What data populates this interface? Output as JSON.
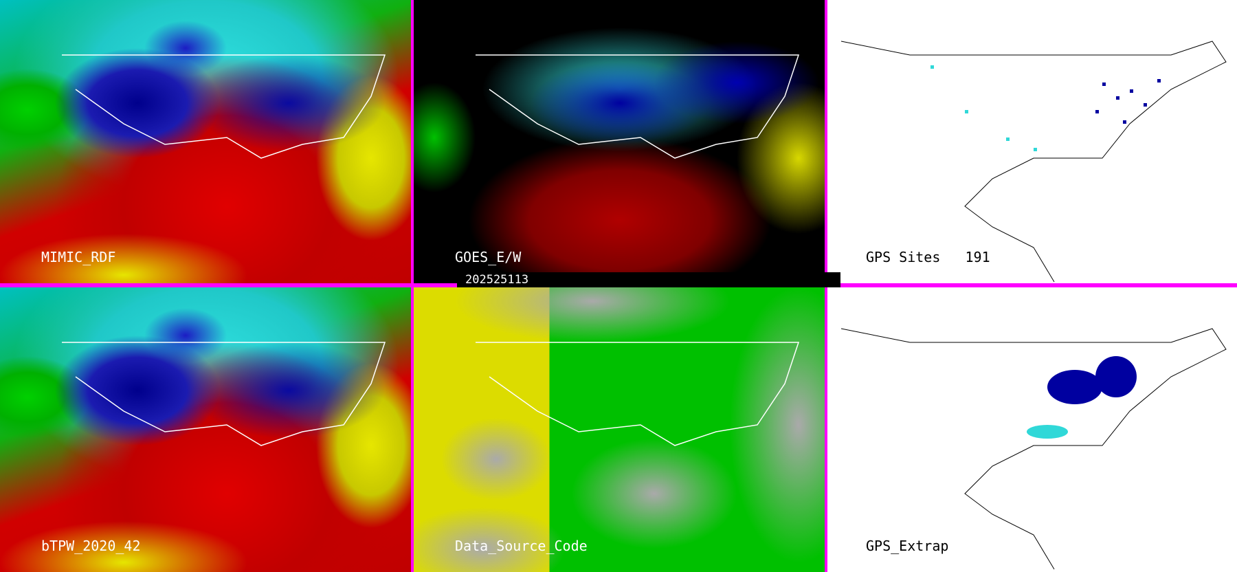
{
  "panels": [
    {
      "label": "MIMIC_RDF"
    },
    {
      "label": "GOES_E/W"
    },
    {
      "label": "GPS Sites",
      "count": "191"
    },
    {
      "label": "bTPW_2020_42"
    },
    {
      "label": "Data_Source_Code"
    },
    {
      "label": "GPS_Extrap"
    }
  ],
  "timestamp": "202525113",
  "colors": {
    "divider": "#ff00ff",
    "moist": "#0000a0",
    "mid": "#30d8d8",
    "dry": "#e00000",
    "gps_site_dark": "#0000a0",
    "gps_site_cyan": "#30d8d8"
  }
}
